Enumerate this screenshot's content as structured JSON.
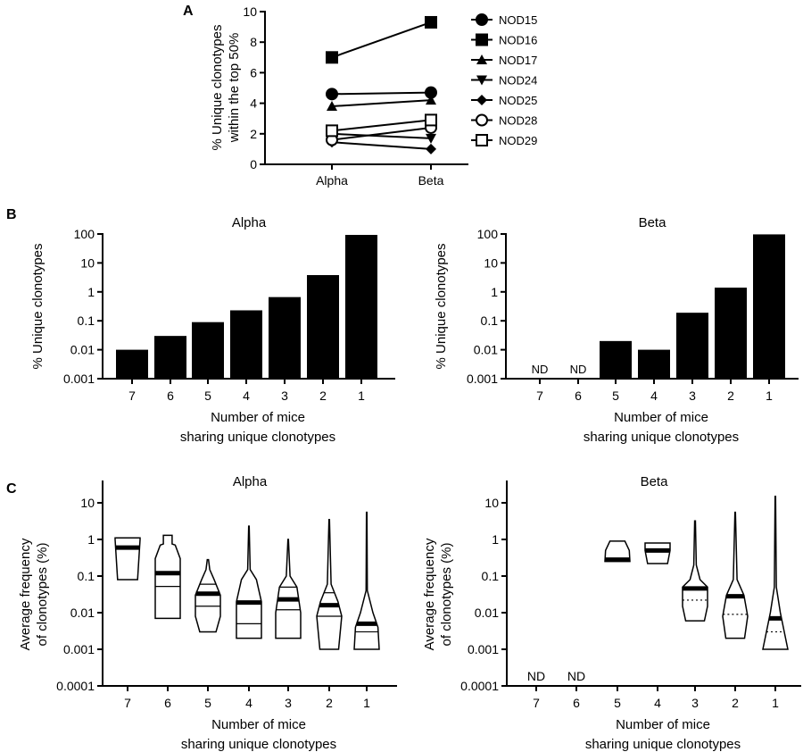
{
  "panel_labels": [
    "A",
    "B",
    "C"
  ],
  "chart_data": [
    {
      "id": "A",
      "type": "line",
      "ylabel": [
        "% Unique clonotypes",
        "within the top 50%"
      ],
      "categories": [
        "Alpha",
        "Beta"
      ],
      "ylim": [
        0,
        10
      ],
      "yticks": [
        "0",
        "2",
        "4",
        "6",
        "8",
        "10"
      ],
      "legend_position": "right",
      "series": [
        {
          "name": "NOD15",
          "marker": "circle-filled",
          "values": [
            4.6,
            4.7
          ]
        },
        {
          "name": "NOD16",
          "marker": "square-filled",
          "values": [
            7.0,
            9.3
          ]
        },
        {
          "name": "NOD17",
          "marker": "triangle-up-filled",
          "values": [
            3.8,
            4.2
          ]
        },
        {
          "name": "NOD24",
          "marker": "triangle-down-filled",
          "values": [
            2.0,
            1.7
          ]
        },
        {
          "name": "NOD25",
          "marker": "diamond-filled",
          "values": [
            1.45,
            1.0
          ]
        },
        {
          "name": "NOD28",
          "marker": "circle-open",
          "values": [
            1.6,
            2.4
          ]
        },
        {
          "name": "NOD29",
          "marker": "square-open",
          "values": [
            2.2,
            2.9
          ]
        }
      ]
    },
    {
      "id": "B-alpha",
      "type": "bar",
      "title": "Alpha",
      "ylabel": "% Unique clonotypes",
      "xlabel": [
        "Number of mice",
        "sharing unique clonotypes"
      ],
      "yscale": "log",
      "ylim": [
        0.001,
        100
      ],
      "yticks": [
        "0.001",
        "0.01",
        "0.1",
        "1",
        "10",
        "100"
      ],
      "categories": [
        "7",
        "6",
        "5",
        "4",
        "3",
        "2",
        "1"
      ],
      "values": [
        0.01,
        0.03,
        0.09,
        0.23,
        0.66,
        3.8,
        93
      ],
      "nd_label": "ND"
    },
    {
      "id": "B-beta",
      "type": "bar",
      "title": "Beta",
      "ylabel": "% Unique clonotypes",
      "xlabel": [
        "Number of mice",
        "sharing unique clonotypes"
      ],
      "yscale": "log",
      "ylim": [
        0.001,
        100
      ],
      "yticks": [
        "0.001",
        "0.01",
        "0.1",
        "1",
        "10",
        "100"
      ],
      "categories": [
        "7",
        "6",
        "5",
        "4",
        "3",
        "2",
        "1"
      ],
      "values": [
        null,
        null,
        0.02,
        0.01,
        0.19,
        1.4,
        97
      ],
      "nd_label": "ND"
    },
    {
      "id": "C-alpha",
      "type": "violin",
      "title": "Alpha",
      "ylabel": [
        "Average frequency",
        "of clonotypes (%)"
      ],
      "xlabel": [
        "Number of mice",
        "sharing unique clonotypes"
      ],
      "yscale": "log",
      "ylim": [
        0.0001,
        10
      ],
      "yticks": [
        "0.0001",
        "0.001",
        "0.01",
        "0.1",
        "1",
        "10"
      ],
      "categories": [
        "7",
        "6",
        "5",
        "4",
        "3",
        "2",
        "1"
      ],
      "nd_label": "ND",
      "groups": [
        {
          "median": 0.6,
          "quartiles": [],
          "density": [
            [
              0.08,
              0.8
            ],
            [
              1.0,
              1
            ],
            [
              1.1,
              1
            ]
          ]
        },
        {
          "median": 0.12,
          "quartiles": [
            0.052
          ],
          "density": [
            [
              0.007,
              1
            ],
            [
              0.3,
              1
            ],
            [
              0.7,
              0.6
            ],
            [
              0.75,
              0.35
            ],
            [
              1.3,
              0.35
            ]
          ]
        },
        {
          "median": 0.033,
          "quartiles": [
            0.015,
            0.06
          ],
          "density": [
            [
              0.003,
              0.65
            ],
            [
              0.008,
              1
            ],
            [
              0.03,
              1
            ],
            [
              0.08,
              0.5
            ],
            [
              0.15,
              0.15
            ],
            [
              0.28,
              0.05
            ]
          ]
        },
        {
          "median": 0.019,
          "quartiles": [
            0.005
          ],
          "density": [
            [
              0.002,
              1
            ],
            [
              0.02,
              1
            ],
            [
              0.08,
              0.6
            ],
            [
              0.15,
              0.1
            ],
            [
              2.3,
              0.02
            ]
          ]
        },
        {
          "median": 0.023,
          "quartiles": [
            0.012,
            0.05
          ],
          "density": [
            [
              0.002,
              1
            ],
            [
              0.01,
              1
            ],
            [
              0.05,
              0.7
            ],
            [
              0.1,
              0.15
            ],
            [
              1.0,
              0.02
            ]
          ]
        },
        {
          "median": 0.016,
          "quartiles": [
            0.008,
            0.035
          ],
          "density": [
            [
              0.001,
              0.75
            ],
            [
              0.008,
              1
            ],
            [
              0.02,
              0.7
            ],
            [
              0.06,
              0.15
            ],
            [
              3.5,
              0.02
            ]
          ]
        },
        {
          "median": 0.005,
          "quartiles": [
            0.003
          ],
          "density": [
            [
              0.001,
              1
            ],
            [
              0.004,
              0.9
            ],
            [
              0.01,
              0.5
            ],
            [
              0.04,
              0.05
            ],
            [
              5.5,
              0.02
            ]
          ]
        }
      ]
    },
    {
      "id": "C-beta",
      "type": "violin",
      "title": "Beta",
      "ylabel": [
        "Average frequency",
        "of clonotypes (%)"
      ],
      "xlabel": [
        "Number of mice",
        "sharing unique clonotypes"
      ],
      "yscale": "log",
      "ylim": [
        0.0001,
        10
      ],
      "yticks": [
        "0.0001",
        "0.001",
        "0.01",
        "0.1",
        "1",
        "10"
      ],
      "categories": [
        "7",
        "6",
        "5",
        "4",
        "3",
        "2",
        "1"
      ],
      "nd_label": "ND",
      "groups": [
        null,
        null,
        {
          "median": 0.28,
          "quartiles": [],
          "density": [
            [
              0.25,
              1
            ],
            [
              0.5,
              0.95
            ],
            [
              0.9,
              0.6
            ]
          ]
        },
        {
          "median": 0.5,
          "quartiles": [],
          "density": [
            [
              0.22,
              0.8
            ],
            [
              0.5,
              1
            ],
            [
              0.8,
              1
            ]
          ]
        },
        {
          "median": 0.046,
          "quartiles": [
            0.022
          ],
          "density": [
            [
              0.006,
              0.75
            ],
            [
              0.015,
              1
            ],
            [
              0.05,
              1
            ],
            [
              0.08,
              0.4
            ],
            [
              0.2,
              0.1
            ],
            [
              3.2,
              0.03
            ]
          ]
        },
        {
          "median": 0.028,
          "quartiles": [
            0.009
          ],
          "density": [
            [
              0.002,
              0.75
            ],
            [
              0.008,
              1
            ],
            [
              0.03,
              0.7
            ],
            [
              0.08,
              0.15
            ],
            [
              5.5,
              0.02
            ]
          ]
        },
        {
          "median": 0.007,
          "quartiles": [
            0.003
          ],
          "density": [
            [
              0.001,
              1
            ],
            [
              0.01,
              0.4
            ],
            [
              0.05,
              0.08
            ],
            [
              15,
              0.02
            ]
          ]
        }
      ]
    }
  ]
}
